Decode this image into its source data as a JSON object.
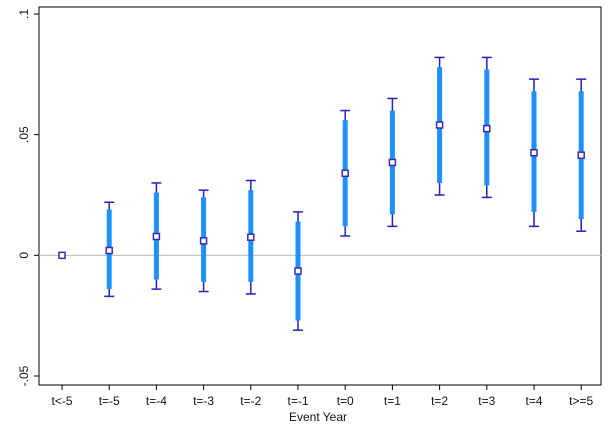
{
  "chart_data": {
    "type": "scatter",
    "title": "",
    "xlabel": "Event Year",
    "ylabel": "",
    "categories": [
      "t<-5",
      "t=-5",
      "t=-4",
      "t=-3",
      "t=-2",
      "t=-1",
      "t=0",
      "t=1",
      "t=2",
      "t=3",
      "t=4",
      "t>=5"
    ],
    "estimates": [
      0.0,
      0.002,
      0.0078,
      0.006,
      0.0075,
      -0.0065,
      0.034,
      0.0385,
      0.054,
      0.0525,
      0.0425,
      0.0415
    ],
    "ci90": [
      [
        0.0,
        0.0
      ],
      [
        -0.014,
        0.019
      ],
      [
        -0.01,
        0.026
      ],
      [
        -0.011,
        0.024
      ],
      [
        -0.011,
        0.027
      ],
      [
        -0.027,
        0.014
      ],
      [
        0.012,
        0.056
      ],
      [
        0.017,
        0.06
      ],
      [
        0.03,
        0.078
      ],
      [
        0.029,
        0.077
      ],
      [
        0.018,
        0.068
      ],
      [
        0.015,
        0.068
      ]
    ],
    "ci95": [
      [
        0.0,
        0.0
      ],
      [
        -0.017,
        0.022
      ],
      [
        -0.014,
        0.03
      ],
      [
        -0.015,
        0.027
      ],
      [
        -0.016,
        0.031
      ],
      [
        -0.031,
        0.018
      ],
      [
        0.008,
        0.06
      ],
      [
        0.012,
        0.065
      ],
      [
        0.025,
        0.082
      ],
      [
        0.024,
        0.082
      ],
      [
        0.012,
        0.073
      ],
      [
        0.01,
        0.073
      ]
    ],
    "yticks": [
      -0.05,
      0,
      0.05,
      0.1
    ],
    "ytick_labels": [
      "-.05",
      "0",
      ".05",
      ".1"
    ],
    "ylim": [
      -0.05,
      0.1
    ],
    "zero_line": true,
    "grid": false,
    "legend": false,
    "colors": {
      "ci90_bar": "#1e90ff",
      "ci95_whisker": "#2222bb",
      "marker_edge": "#3a2ab0",
      "marker_fill": "#ffffff",
      "zero_line": "#bbbbbb",
      "axis": "#000000"
    }
  }
}
